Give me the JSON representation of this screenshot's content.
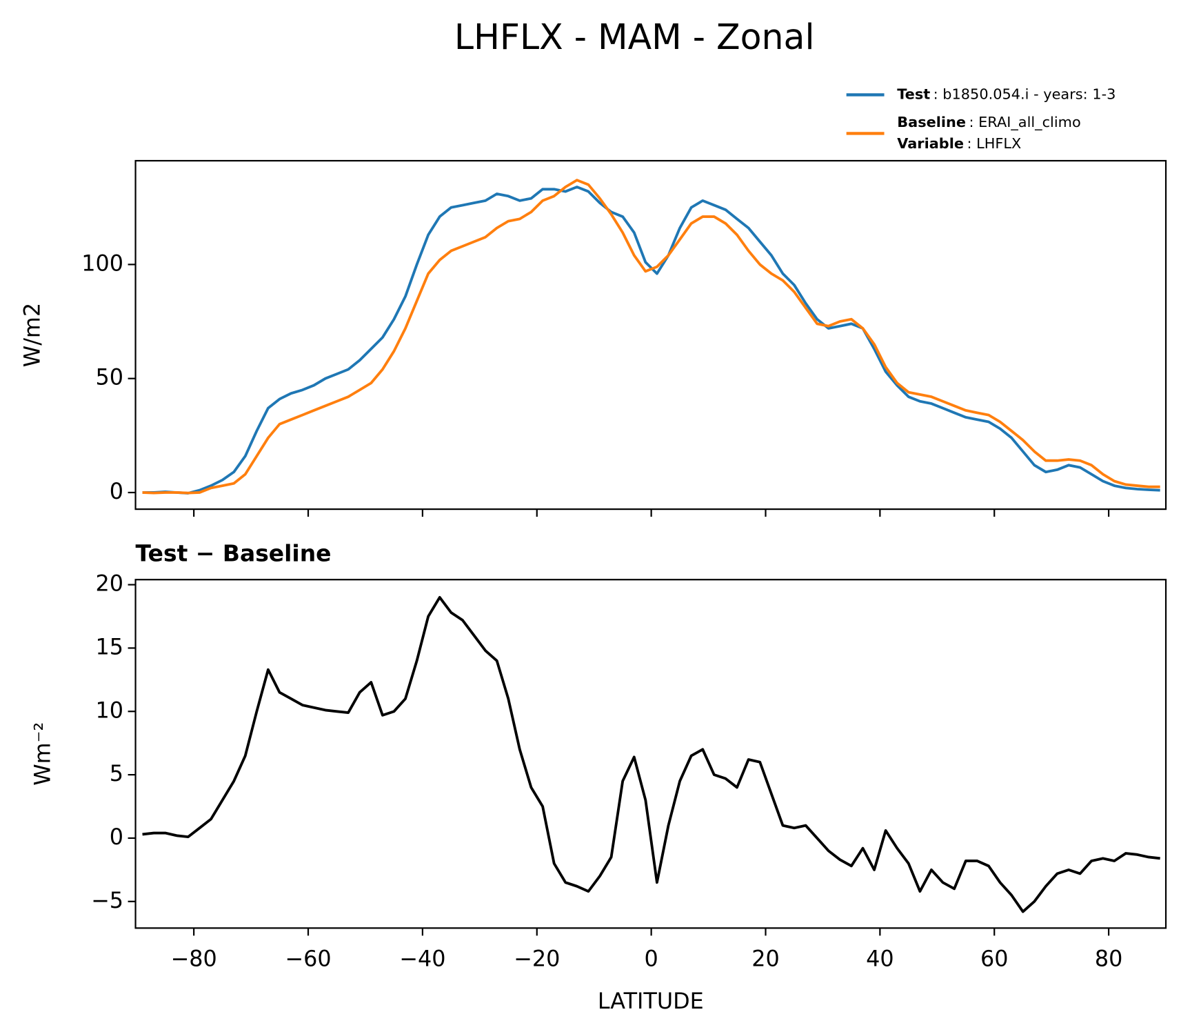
{
  "chart_data": [
    {
      "type": "line",
      "title": "LHFLX - MAM - Zonal",
      "ylabel": "W/m2",
      "x": [
        -89,
        -87,
        -85,
        -83,
        -81,
        -79,
        -77,
        -75,
        -73,
        -71,
        -69,
        -67,
        -65,
        -63,
        -61,
        -59,
        -57,
        -55,
        -53,
        -51,
        -49,
        -47,
        -45,
        -43,
        -41,
        -39,
        -37,
        -35,
        -33,
        -31,
        -29,
        -27,
        -25,
        -23,
        -21,
        -19,
        -17,
        -15,
        -13,
        -11,
        -9,
        -7,
        -5,
        -3,
        -1,
        1,
        3,
        5,
        7,
        9,
        11,
        13,
        15,
        17,
        19,
        21,
        23,
        25,
        27,
        29,
        31,
        33,
        35,
        37,
        39,
        41,
        43,
        45,
        47,
        49,
        51,
        53,
        55,
        57,
        59,
        61,
        63,
        65,
        67,
        69,
        71,
        73,
        75,
        77,
        79,
        81,
        83,
        85,
        87,
        89
      ],
      "series": [
        {
          "name": "Test",
          "label": ": b1850.054.i - years: 1-3",
          "color": "#1f77b4",
          "values": [
            0,
            0,
            0.3,
            0,
            -0.3,
            1,
            3,
            5.5,
            9,
            16,
            27,
            37,
            41,
            43.5,
            45,
            47,
            50,
            52,
            54,
            58,
            63,
            68,
            76,
            86,
            100,
            113,
            121,
            125,
            126,
            127,
            128,
            131,
            130,
            128,
            129,
            133,
            133,
            132,
            134,
            132,
            127,
            123,
            121,
            114,
            101,
            96,
            104,
            116,
            125,
            128,
            126,
            124,
            120,
            116,
            110,
            104,
            96,
            91,
            83,
            76,
            72,
            73,
            74,
            72,
            63,
            53,
            47,
            42,
            40,
            39,
            37,
            35,
            33,
            32,
            31,
            28,
            24,
            18,
            12,
            9,
            10,
            12,
            11,
            8,
            5,
            3,
            2,
            1.5,
            1.2,
            1
          ]
        },
        {
          "name": "Baseline",
          "label": ": ERAI_all_climo",
          "color": "#ff7f0e",
          "values": [
            0,
            -0.2,
            0,
            0,
            -0.2,
            0,
            2,
            3,
            4,
            8,
            16,
            24,
            30,
            32,
            34,
            36,
            38,
            40,
            42,
            45,
            48,
            54,
            62,
            72,
            84,
            96,
            102,
            106,
            108,
            110,
            112,
            116,
            119,
            120,
            123,
            128,
            130,
            134,
            137,
            135,
            129,
            122,
            114,
            104,
            97,
            99,
            104,
            111,
            118,
            121,
            121,
            118,
            113,
            106,
            100,
            96,
            93,
            88,
            81,
            74,
            73,
            75,
            76,
            72,
            65,
            55,
            48,
            44,
            43,
            42,
            40,
            38,
            36,
            35,
            34,
            31,
            27,
            23,
            18,
            14,
            14,
            14.5,
            14,
            12,
            8,
            5,
            3.5,
            3,
            2.5,
            2.5
          ]
        }
      ],
      "legend_extra": {
        "name": "Variable",
        "label": ": LHFLX"
      },
      "xlim": [
        -90.2,
        90
      ],
      "xticks": [
        -80,
        -60,
        -40,
        -20,
        0,
        20,
        40,
        60,
        80
      ],
      "xticklabels": false,
      "ylim": [
        -7.3,
        145.5
      ],
      "yticks": [
        0,
        50,
        100
      ]
    },
    {
      "type": "line",
      "title": "Test − Baseline",
      "ylabel": "Wm⁻²",
      "xlabel": "LATITUDE",
      "x": [
        -89,
        -87,
        -85,
        -83,
        -81,
        -79,
        -77,
        -75,
        -73,
        -71,
        -69,
        -67,
        -65,
        -63,
        -61,
        -59,
        -57,
        -55,
        -53,
        -51,
        -49,
        -47,
        -45,
        -43,
        -41,
        -39,
        -37,
        -35,
        -33,
        -31,
        -29,
        -27,
        -25,
        -23,
        -21,
        -19,
        -17,
        -15,
        -13,
        -11,
        -9,
        -7,
        -5,
        -3,
        -1,
        1,
        3,
        5,
        7,
        9,
        11,
        13,
        15,
        17,
        19,
        21,
        23,
        25,
        27,
        29,
        31,
        33,
        35,
        37,
        39,
        41,
        43,
        45,
        47,
        49,
        51,
        53,
        55,
        57,
        59,
        61,
        63,
        65,
        67,
        69,
        71,
        73,
        75,
        77,
        79,
        81,
        83,
        85,
        87,
        89
      ],
      "series": [
        {
          "color": "#000000",
          "values": [
            0.3,
            0.4,
            0.4,
            0.2,
            0.1,
            0.8,
            1.5,
            3,
            4.5,
            6.5,
            10,
            13.3,
            11.5,
            11,
            10.5,
            10.3,
            10.1,
            10,
            9.9,
            11.5,
            12.3,
            9.7,
            10,
            11,
            14,
            17.5,
            19,
            17.8,
            17.2,
            16,
            14.8,
            14,
            11,
            7,
            4,
            2.5,
            -2,
            -3.5,
            -3.8,
            -4.2,
            -3,
            -1.5,
            4.5,
            6.4,
            3,
            -3.5,
            1,
            4.5,
            6.5,
            7,
            5,
            4.7,
            4,
            6.2,
            6,
            3.5,
            1,
            0.8,
            1,
            0,
            -1,
            -1.7,
            -2.2,
            -0.8,
            -2.5,
            0.6,
            -0.8,
            -2,
            -4.2,
            -2.5,
            -3.5,
            -4,
            -1.8,
            -1.8,
            -2.2,
            -3.5,
            -4.5,
            -5.8,
            -5,
            -3.8,
            -2.8,
            -2.5,
            -2.8,
            -1.8,
            -1.6,
            -1.8,
            -1.2,
            -1.3,
            -1.5,
            -1.6
          ]
        }
      ],
      "xlim": [
        -90.2,
        90
      ],
      "xticks": [
        {
          "value": -80,
          "label": "−80"
        },
        {
          "value": -60,
          "label": "−60"
        },
        {
          "value": -40,
          "label": "−40"
        },
        {
          "value": -20,
          "label": "−20"
        },
        0,
        20,
        40,
        60,
        80
      ],
      "xticklabels": true,
      "ylim": [
        -7.1,
        20.4
      ],
      "yticks": [
        {
          "value": -5,
          "label": "−5"
        },
        0,
        5,
        10,
        15,
        20
      ]
    }
  ]
}
